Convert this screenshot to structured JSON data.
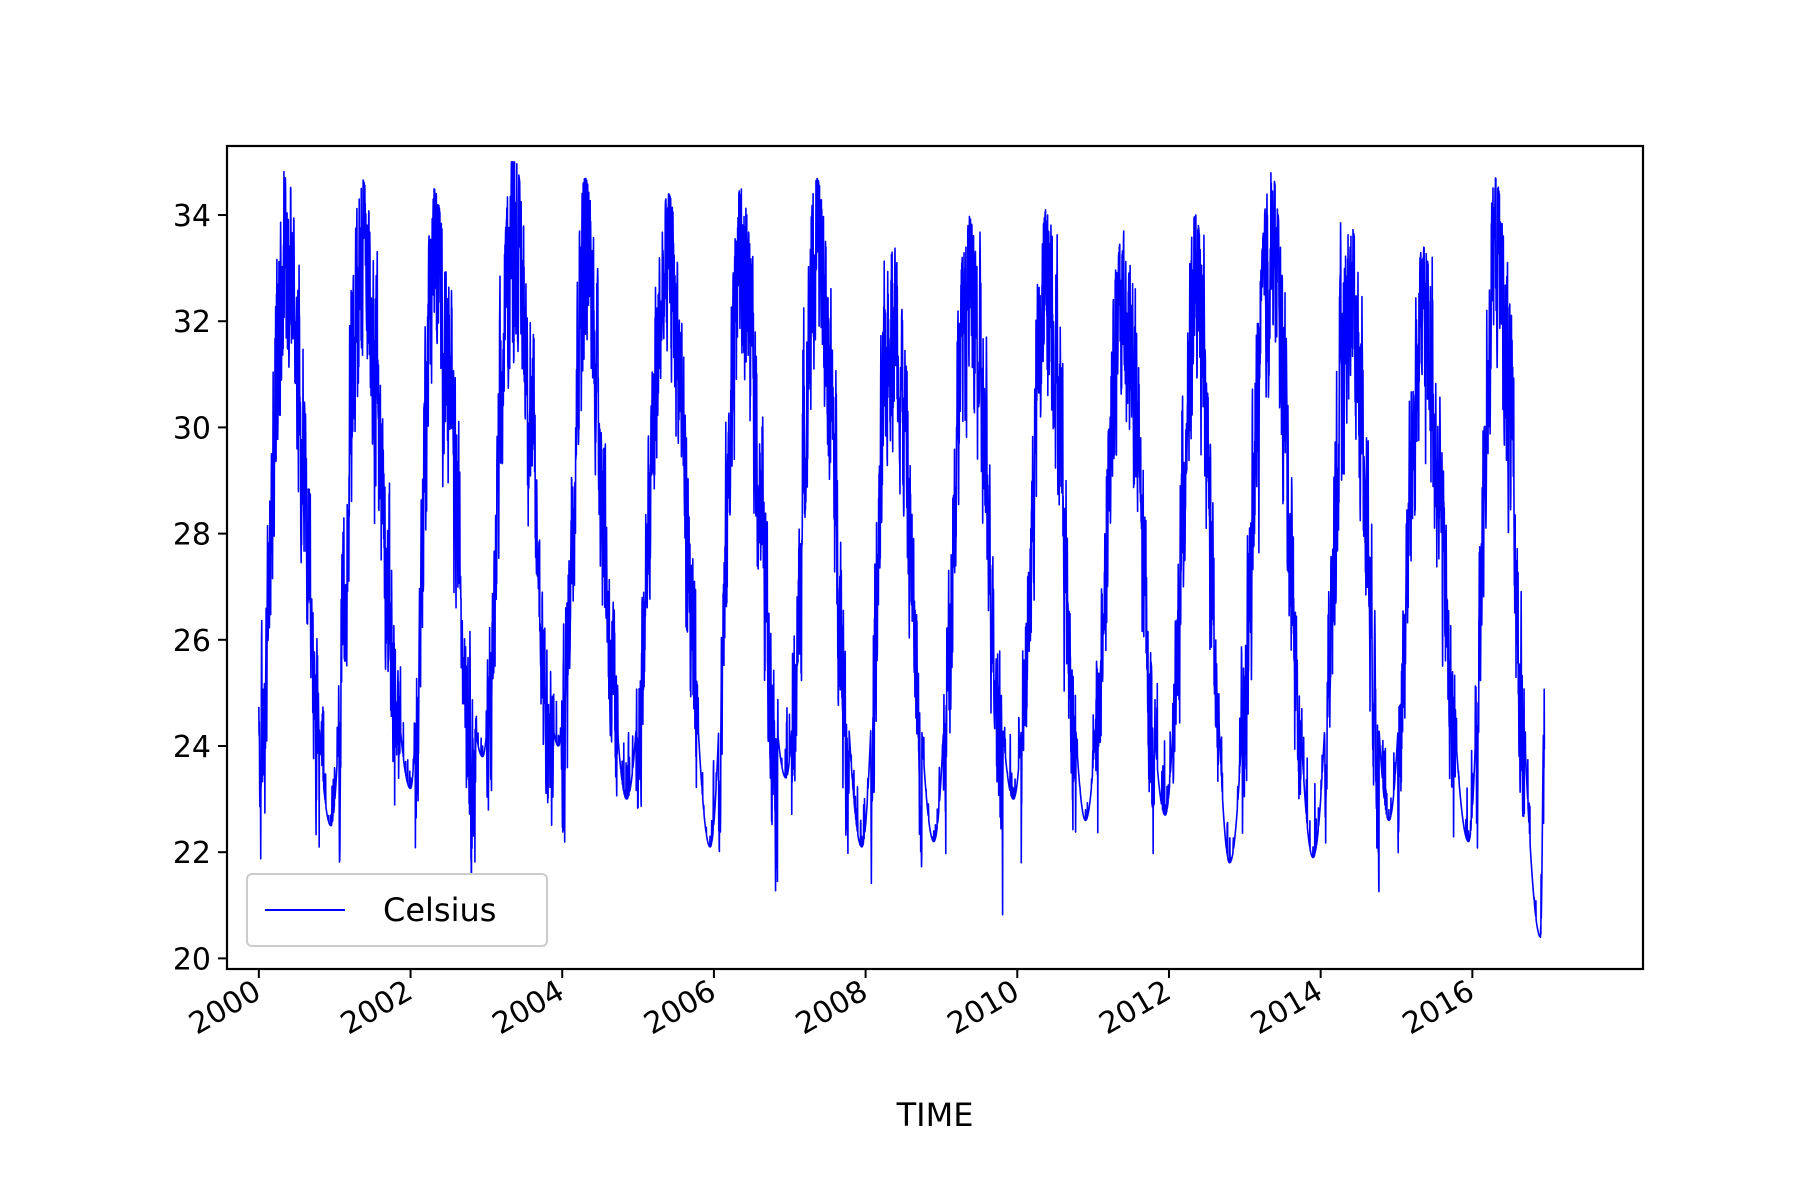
{
  "chart_data": {
    "type": "line",
    "title": "",
    "xlabel": "TIME",
    "ylabel": "",
    "xlim": [
      1999.58,
      2018.25
    ],
    "ylim": [
      19.8,
      35.3
    ],
    "x_ticks": [
      2000,
      2002,
      2004,
      2006,
      2008,
      2010,
      2012,
      2014,
      2016
    ],
    "x_tick_labels": [
      "2000",
      "2002",
      "2004",
      "2006",
      "2008",
      "2010",
      "2012",
      "2014",
      "2016"
    ],
    "y_ticks": [
      20,
      22,
      24,
      26,
      28,
      30,
      32,
      34
    ],
    "y_tick_labels": [
      "20",
      "22",
      "24",
      "26",
      "28",
      "30",
      "32",
      "34"
    ],
    "grid": false,
    "legend": {
      "position": "lower-left",
      "entries": [
        "Celsius"
      ]
    },
    "series": [
      {
        "name": "Celsius",
        "color": "#0000ff",
        "x_start": 2000.0,
        "x_end": 2016.95,
        "y_min_observed": 20.6,
        "y_max_observed": 35.0,
        "seasonal_peaks": [
          {
            "x": 2000.35,
            "y": 34.7
          },
          {
            "x": 2001.35,
            "y": 34.5
          },
          {
            "x": 2002.3,
            "y": 34.3
          },
          {
            "x": 2003.35,
            "y": 35.0
          },
          {
            "x": 2004.3,
            "y": 34.5
          },
          {
            "x": 2005.4,
            "y": 34.2
          },
          {
            "x": 2006.35,
            "y": 34.3
          },
          {
            "x": 2007.35,
            "y": 34.5
          },
          {
            "x": 2008.35,
            "y": 33.3
          },
          {
            "x": 2009.35,
            "y": 33.8
          },
          {
            "x": 2010.4,
            "y": 34.0
          },
          {
            "x": 2011.4,
            "y": 33.5
          },
          {
            "x": 2012.35,
            "y": 33.8
          },
          {
            "x": 2013.35,
            "y": 34.6
          },
          {
            "x": 2014.4,
            "y": 33.6
          },
          {
            "x": 2015.35,
            "y": 33.2
          },
          {
            "x": 2016.3,
            "y": 34.5
          }
        ],
        "seasonal_troughs": [
          {
            "x": 2000.95,
            "y": 22.7
          },
          {
            "x": 2002.0,
            "y": 23.4
          },
          {
            "x": 2002.95,
            "y": 24.0
          },
          {
            "x": 2003.95,
            "y": 24.2
          },
          {
            "x": 2004.85,
            "y": 23.2
          },
          {
            "x": 2005.95,
            "y": 22.3
          },
          {
            "x": 2006.95,
            "y": 23.6
          },
          {
            "x": 2007.95,
            "y": 22.3
          },
          {
            "x": 2008.9,
            "y": 22.4
          },
          {
            "x": 2009.95,
            "y": 23.2
          },
          {
            "x": 2010.9,
            "y": 22.8
          },
          {
            "x": 2011.95,
            "y": 22.9
          },
          {
            "x": 2012.8,
            "y": 22.0
          },
          {
            "x": 2013.9,
            "y": 22.1
          },
          {
            "x": 2014.9,
            "y": 22.8
          },
          {
            "x": 2015.95,
            "y": 22.4
          },
          {
            "x": 2016.9,
            "y": 20.6
          }
        ]
      }
    ]
  }
}
